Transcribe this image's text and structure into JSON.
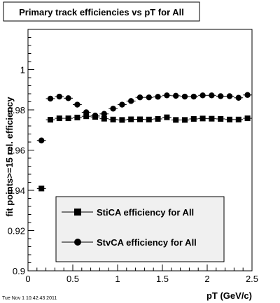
{
  "chart_data": {
    "type": "scatter",
    "title": "Primary track efficiencies vs pT for All",
    "xlabel": "pT (GeV/c)",
    "ylabel": "fit points>=15 rel. efficiency",
    "xlim": [
      0,
      2.5
    ],
    "ylim": [
      0.9,
      1.02
    ],
    "x_ticks": [
      0,
      0.5,
      1,
      1.5,
      2,
      2.5
    ],
    "x_tick_labels": [
      "0",
      "0.5",
      "1",
      "1.5",
      "2",
      "2.5"
    ],
    "y_ticks": [
      0.9,
      0.92,
      0.94,
      0.96,
      0.98,
      1.0
    ],
    "y_tick_labels": [
      "0.9",
      "0.92",
      "0.94",
      "0.96",
      "0.98",
      "1"
    ],
    "grid": false,
    "legend_position": "bottom-center",
    "series": [
      {
        "name": "StiCA efficiency  for All",
        "marker": "square",
        "color": "#000000",
        "x": [
          0.15,
          0.25,
          0.35,
          0.45,
          0.55,
          0.65,
          0.75,
          0.85,
          0.95,
          1.05,
          1.15,
          1.25,
          1.35,
          1.45,
          1.55,
          1.65,
          1.75,
          1.85,
          1.95,
          2.05,
          2.15,
          2.25,
          2.35,
          2.45
        ],
        "y": [
          0.9409,
          0.9751,
          0.9758,
          0.9758,
          0.9762,
          0.9768,
          0.9765,
          0.9756,
          0.9752,
          0.975,
          0.9753,
          0.9753,
          0.9752,
          0.9755,
          0.9763,
          0.975,
          0.975,
          0.9755,
          0.9757,
          0.9756,
          0.9755,
          0.9752,
          0.9752,
          0.9758
        ]
      },
      {
        "name": "StvCA efficiency  for All",
        "marker": "circle",
        "color": "#000000",
        "x": [
          0.15,
          0.25,
          0.35,
          0.45,
          0.55,
          0.65,
          0.75,
          0.85,
          0.95,
          1.05,
          1.15,
          1.25,
          1.35,
          1.45,
          1.55,
          1.65,
          1.75,
          1.85,
          1.95,
          2.05,
          2.15,
          2.25,
          2.35,
          2.45
        ],
        "y": [
          0.9648,
          0.9856,
          0.9866,
          0.9858,
          0.9826,
          0.9788,
          0.9772,
          0.978,
          0.9806,
          0.9826,
          0.9844,
          0.9862,
          0.9862,
          0.9865,
          0.9872,
          0.987,
          0.9866,
          0.9866,
          0.9872,
          0.9872,
          0.9868,
          0.9868,
          0.986,
          0.9874
        ]
      }
    ],
    "error_bar_dx": 0.05
  },
  "footer": {
    "timestamp": "Tue Nov  1 10:42:43 2011"
  }
}
